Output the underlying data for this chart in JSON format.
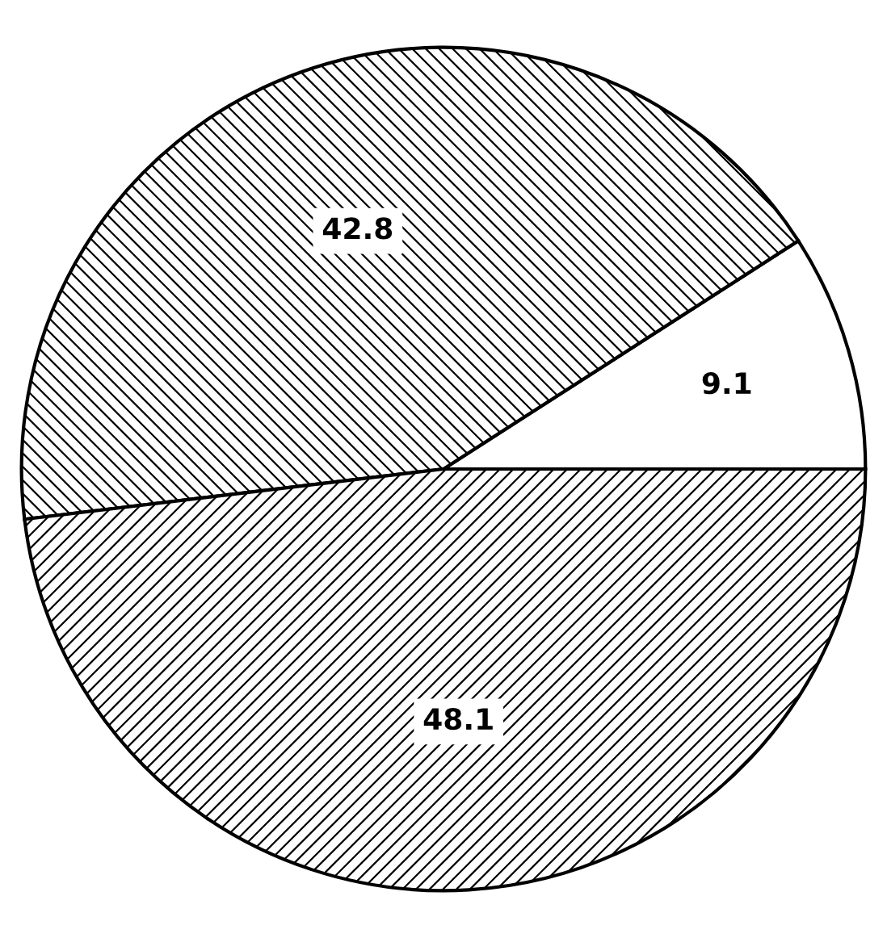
{
  "chart_data": {
    "type": "pie",
    "categories": [
      null,
      null,
      null
    ],
    "values": [
      9.1,
      42.8,
      48.1
    ],
    "data_labels": true
  }
}
